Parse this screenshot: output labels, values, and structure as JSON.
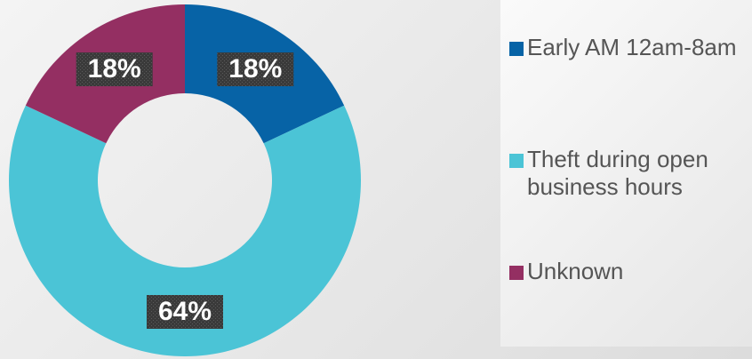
{
  "chart_data": {
    "type": "donut",
    "categories": [
      "Early AM 12am-8am",
      "Theft during open business hours",
      "Unknown"
    ],
    "values": [
      18,
      64,
      18
    ],
    "value_labels": [
      "18%",
      "64%",
      "18%"
    ],
    "colors": [
      "#0763a6",
      "#4bc4d6",
      "#942f62"
    ],
    "legend": "right"
  }
}
